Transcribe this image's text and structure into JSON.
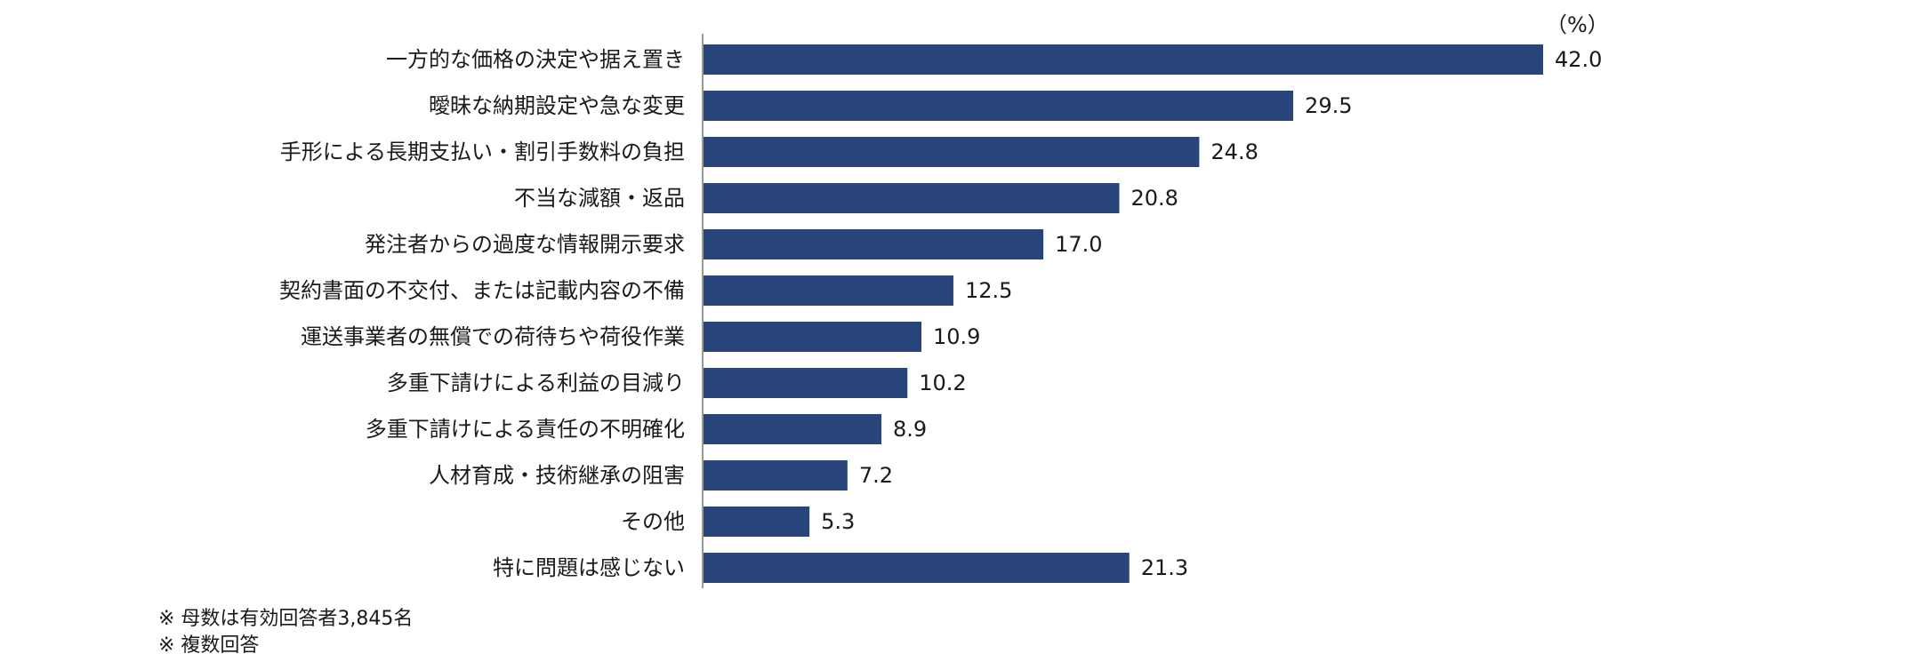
{
  "chart_data": {
    "type": "bar",
    "orientation": "horizontal",
    "unit_label": "（%）",
    "xlim": [
      0,
      42.0
    ],
    "categories": [
      "一方的な価格の決定や据え置き",
      "曖昧な納期設定や急な変更",
      "手形による長期支払い・割引手数料の負担",
      "不当な減額・返品",
      "発注者からの過度な情報開示要求",
      "契約書面の不交付、または記載内容の不備",
      "運送事業者の無償での荷待ちや荷役作業",
      "多重下請けによる利益の目減り",
      "多重下請けによる責任の不明確化",
      "人材育成・技術継承の阻害",
      "その他",
      "特に問題は感じない"
    ],
    "values": [
      42.0,
      29.5,
      24.8,
      20.8,
      17.0,
      12.5,
      10.9,
      10.2,
      8.9,
      7.2,
      5.3,
      21.3
    ],
    "value_labels": [
      "42.0",
      "29.5",
      "24.8",
      "20.8",
      "17.0",
      "12.5",
      "10.9",
      "10.2",
      "8.9",
      "7.2",
      "5.3",
      "21.3"
    ],
    "bar_color": "#27457a",
    "axis_color": "#999999",
    "grid": false,
    "legend": "none"
  },
  "notes": [
    "※ 母数は有効回答者3,845名",
    "※ 複数回答"
  ]
}
